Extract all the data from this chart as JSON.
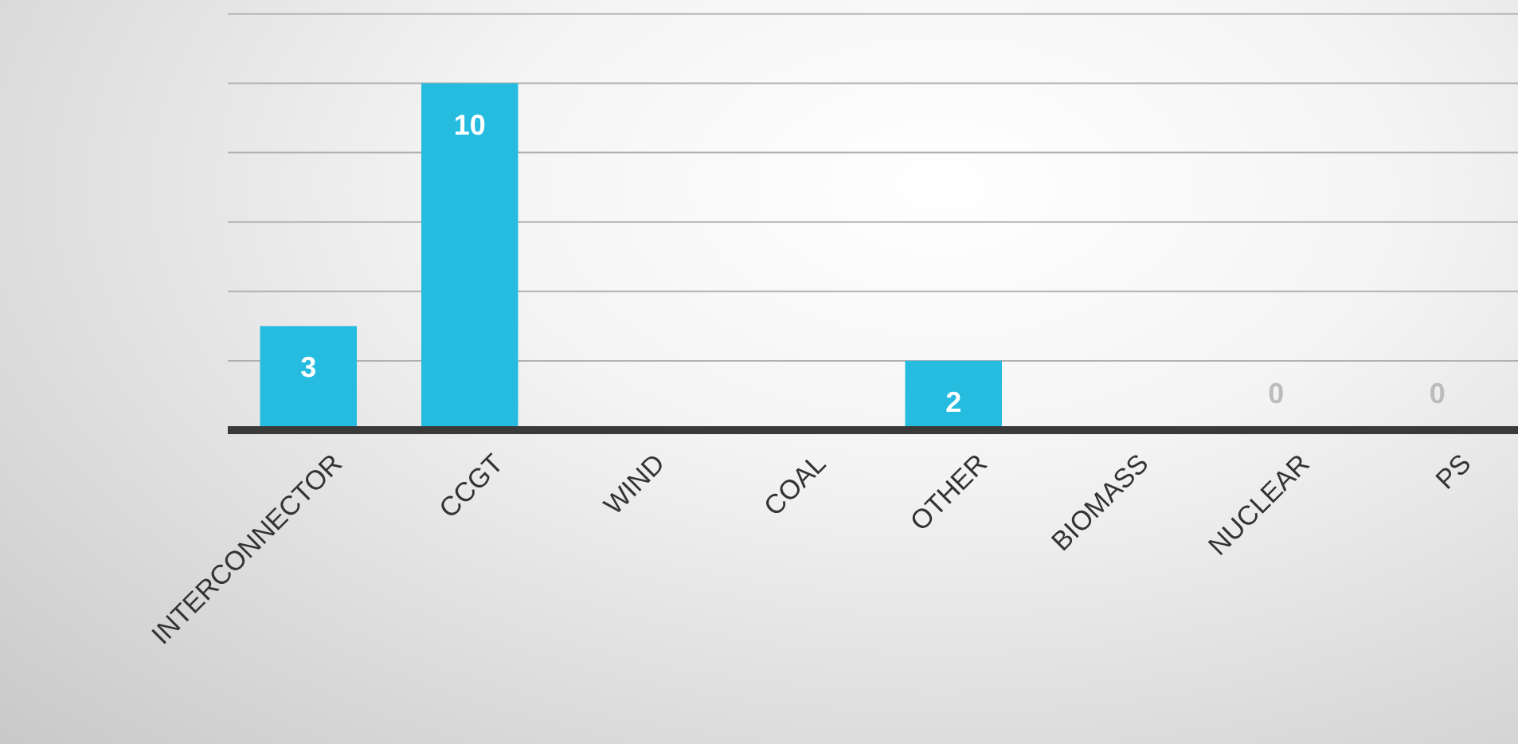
{
  "chart_data": {
    "type": "bar",
    "categories": [
      "INTERCONNECTOR",
      "CCGT",
      "WIND",
      "COAL",
      "OTHER",
      "BIOMASS",
      "NUCLEAR",
      "PS"
    ],
    "values": [
      3,
      10,
      null,
      null,
      2,
      null,
      0,
      0
    ],
    "value_labels": [
      "3",
      "10",
      null,
      null,
      "2",
      null,
      "0",
      "0"
    ],
    "color": "#25bce0",
    "ylim": [
      0,
      12.4
    ],
    "yticks": [
      {
        "value": 0,
        "label": null
      },
      {
        "value": 2,
        "label": null
      },
      {
        "value": 4,
        "label": null
      },
      {
        "value": 6,
        "label": null
      },
      {
        "value": 8,
        "label": null
      },
      {
        "value": 10,
        "label": null
      },
      {
        "value": 12,
        "label": null
      }
    ],
    "grid": "y",
    "tick_labels": "x"
  }
}
